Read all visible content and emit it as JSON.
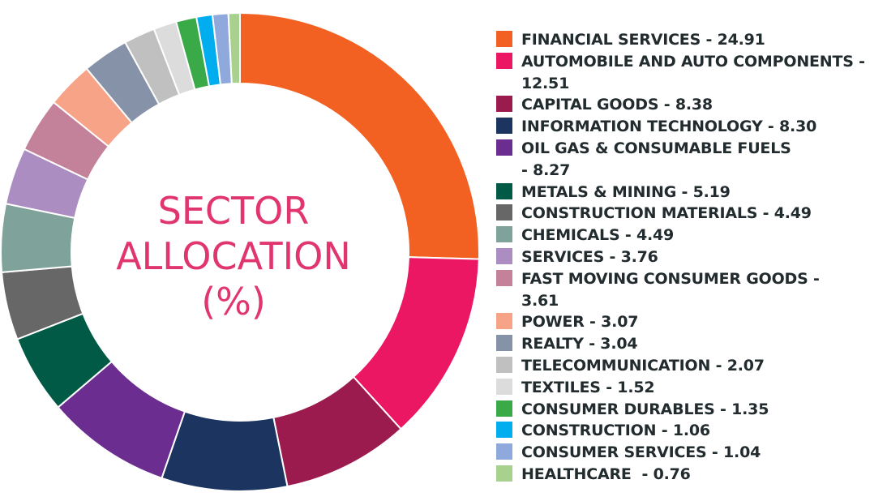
{
  "chart_data": {
    "type": "pie",
    "title": "SECTOR ALLOCATION (%)",
    "title_lines": [
      "SECTOR",
      "ALLOCATION",
      "(%)"
    ],
    "legend_position": "right",
    "slices": [
      {
        "label": "FINANCIAL SERVICES",
        "value": 24.91,
        "color": "#f26122",
        "legend_lines": [
          "FINANCIAL SERVICES - 24.91"
        ]
      },
      {
        "label": "AUTOMOBILE AND AUTO COMPONENTS",
        "value": 12.51,
        "color": "#ec1763",
        "legend_lines": [
          "AUTOMOBILE AND AUTO COMPONENTS -",
          "12.51"
        ]
      },
      {
        "label": "CAPITAL GOODS",
        "value": 8.38,
        "color": "#9b1b4f",
        "legend_lines": [
          "CAPITAL GOODS - 8.38"
        ]
      },
      {
        "label": "INFORMATION TECHNOLOGY",
        "value": 8.3,
        "color": "#1c3560",
        "legend_lines": [
          "INFORMATION TECHNOLOGY - 8.30"
        ]
      },
      {
        "label": "OIL GAS & CONSUMABLE FUELS",
        "value": 8.27,
        "color": "#6b2d8f",
        "legend_lines": [
          "OIL GAS & CONSUMABLE FUELS",
          "- 8.27"
        ]
      },
      {
        "label": "METALS & MINING",
        "value": 5.19,
        "color": "#005a46",
        "legend_lines": [
          "METALS & MINING - 5.19"
        ]
      },
      {
        "label": "CONSTRUCTION MATERIALS",
        "value": 4.49,
        "color": "#676767",
        "legend_lines": [
          "CONSTRUCTION MATERIALS - 4.49"
        ]
      },
      {
        "label": "CHEMICALS",
        "value": 4.49,
        "color": "#7fa39a",
        "legend_lines": [
          "CHEMICALS - 4.49"
        ]
      },
      {
        "label": "SERVICES",
        "value": 3.76,
        "color": "#ab8dc2",
        "legend_lines": [
          "SERVICES - 3.76"
        ]
      },
      {
        "label": "FAST MOVING CONSUMER GOODS",
        "value": 3.61,
        "color": "#c4829a",
        "legend_lines": [
          "FAST MOVING CONSUMER GOODS -",
          "3.61"
        ]
      },
      {
        "label": "POWER",
        "value": 3.07,
        "color": "#f7a388",
        "legend_lines": [
          "POWER - 3.07"
        ]
      },
      {
        "label": "REALTY",
        "value": 3.04,
        "color": "#8692a8",
        "legend_lines": [
          "REALTY - 3.04"
        ]
      },
      {
        "label": "TELECOMMUNICATION",
        "value": 2.07,
        "color": "#c0c0c0",
        "legend_lines": [
          "TELECOMMUNICATION - 2.07"
        ]
      },
      {
        "label": "TEXTILES",
        "value": 1.52,
        "color": "#dcdcdc",
        "legend_lines": [
          "TEXTILES - 1.52"
        ]
      },
      {
        "label": "CONSUMER DURABLES",
        "value": 1.35,
        "color": "#3aaa49",
        "legend_lines": [
          "CONSUMER DURABLES - 1.35"
        ]
      },
      {
        "label": "CONSTRUCTION",
        "value": 1.06,
        "color": "#00adef",
        "legend_lines": [
          "CONSTRUCTION - 1.06"
        ]
      },
      {
        "label": "CONSUMER SERVICES",
        "value": 1.04,
        "color": "#8fa9dc",
        "legend_lines": [
          "CONSUMER SERVICES - 1.04"
        ]
      },
      {
        "label": "HEALTHCARE",
        "value": 0.76,
        "color": "#a9d18e",
        "legend_lines": [
          "HEALTHCARE  - 0.76"
        ]
      }
    ]
  }
}
